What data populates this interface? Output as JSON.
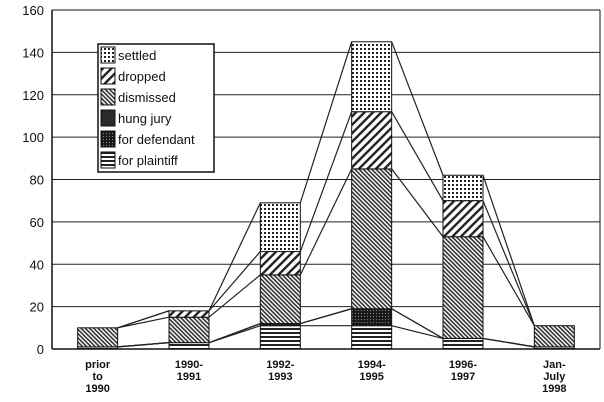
{
  "chart_data": {
    "type": "bar",
    "stacked": true,
    "title": "",
    "xlabel": "",
    "ylabel": "",
    "ylim": [
      0,
      160
    ],
    "yticks": [
      0,
      20,
      40,
      60,
      80,
      100,
      120,
      140,
      160
    ],
    "grid": true,
    "legend_position": "top-left",
    "categories": [
      [
        "prior",
        "to",
        "1990"
      ],
      [
        "1990-",
        "1991"
      ],
      [
        "1992-",
        "1993"
      ],
      [
        "1994-",
        "1995"
      ],
      [
        "1996-",
        "1997"
      ],
      [
        "Jan-",
        "July",
        "1998"
      ]
    ],
    "series": [
      {
        "name": "for plaintiff",
        "pattern": "hlines",
        "values": [
          1,
          3,
          11,
          11,
          5,
          1
        ]
      },
      {
        "name": "for defendant",
        "pattern": "dark-dots",
        "values": [
          0,
          0,
          1,
          8,
          0,
          0
        ]
      },
      {
        "name": "hung jury",
        "pattern": "solid-dark",
        "values": [
          0,
          0,
          0,
          0,
          0,
          0
        ]
      },
      {
        "name": "dismissed",
        "pattern": "dense-diag",
        "values": [
          9,
          12,
          23,
          66,
          48,
          10
        ]
      },
      {
        "name": "dropped",
        "pattern": "wide-diag",
        "values": [
          0,
          3,
          11,
          27,
          17,
          0
        ]
      },
      {
        "name": "settled",
        "pattern": "grid-dots",
        "values": [
          0,
          0,
          23,
          33,
          12,
          0
        ]
      }
    ],
    "legend_order": [
      "settled",
      "dropped",
      "dismissed",
      "hung jury",
      "for defendant",
      "for plaintiff"
    ]
  }
}
